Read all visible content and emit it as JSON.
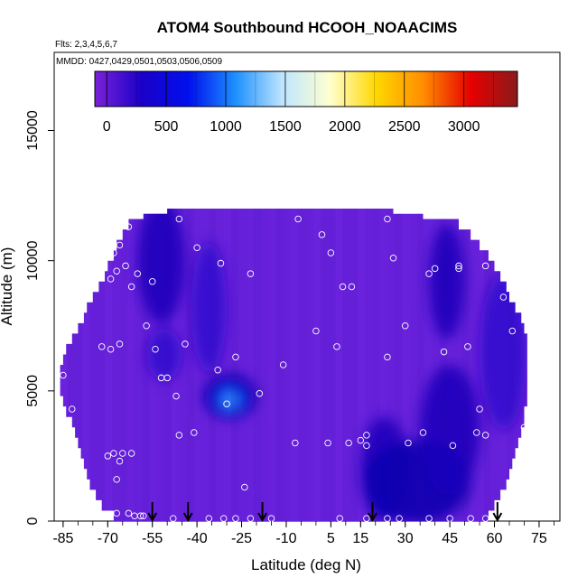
{
  "chart_data": {
    "type": "heatmap",
    "title": "ATOM4 Southbound HCOOH_NOAACIMS",
    "flights_note": "Flts: 2,3,4,5,6,7",
    "dates_note": "MMDD: 0427,0429,0501,0503,0506,0509",
    "xlabel": "Latitude (deg N)",
    "ylabel": "Altitude (m)",
    "xlim": [
      -88,
      82
    ],
    "ylim": [
      0,
      18000
    ],
    "x_ticks": [
      -85,
      -70,
      -55,
      -40,
      -25,
      -10,
      5,
      15,
      30,
      45,
      60,
      75
    ],
    "y_ticks": [
      0,
      5000,
      10000,
      15000
    ],
    "colorbar": {
      "range": [
        -100,
        3450
      ],
      "ticks": [
        0,
        500,
        1000,
        1500,
        2000,
        2500,
        3000
      ],
      "colors": [
        "#7b22d8",
        "#1a00c8",
        "#0010ee",
        "#1e90ff",
        "#bfe6ff",
        "#ffffd0",
        "#ffd700",
        "#ff8c00",
        "#e60000",
        "#8b1a1a"
      ]
    },
    "field_colors": {
      "background": "#6a22dc",
      "low": "#3512d0",
      "mid": "#1c06bc",
      "high": "#0a00b0",
      "plume_outer": "#0020e8",
      "plume_center": "#3aa0ff"
    },
    "enhanced_regions": [
      {
        "lat": -52,
        "alt": 10000,
        "rlat": 8,
        "ralt": 2400,
        "level": "mid"
      },
      {
        "lat": -51,
        "alt": 6400,
        "rlat": 6,
        "ralt": 1000,
        "level": "low"
      },
      {
        "lat": -36,
        "alt": 8200,
        "rlat": 6,
        "ralt": 2500,
        "level": "low"
      },
      {
        "lat": -29,
        "alt": 4800,
        "rlat": 9,
        "ralt": 850,
        "level": "high"
      },
      {
        "lat": 23,
        "alt": 2000,
        "rlat": 8,
        "ralt": 2000,
        "level": "mid"
      },
      {
        "lat": 34,
        "alt": 1500,
        "rlat": 18,
        "ralt": 1600,
        "level": "high"
      },
      {
        "lat": 45,
        "alt": 3500,
        "rlat": 10,
        "ralt": 2500,
        "level": "mid"
      },
      {
        "lat": 44,
        "alt": 9200,
        "rlat": 6,
        "ralt": 2200,
        "level": "mid"
      },
      {
        "lat": 63,
        "alt": 6500,
        "rlat": 8,
        "ralt": 3000,
        "level": "low"
      }
    ],
    "sample_points": [
      [
        -85,
        5600
      ],
      [
        -82,
        4300
      ],
      [
        -72,
        6700
      ],
      [
        -69,
        6600
      ],
      [
        -66,
        6800
      ],
      [
        -70,
        2500
      ],
      [
        -68,
        2600
      ],
      [
        -65,
        2600
      ],
      [
        -67,
        1600
      ],
      [
        -66,
        2300
      ],
      [
        -62,
        2600
      ],
      [
        -70,
        200
      ],
      [
        -67,
        300
      ],
      [
        -63,
        300
      ],
      [
        -61,
        200
      ],
      [
        -59,
        200
      ],
      [
        -58,
        200
      ],
      [
        -69,
        9300
      ],
      [
        -67,
        9600
      ],
      [
        -64,
        9800
      ],
      [
        -62,
        9000
      ],
      [
        -60,
        9500
      ],
      [
        -55,
        9200
      ],
      [
        -68,
        10300
      ],
      [
        -66,
        10600
      ],
      [
        -63,
        11300
      ],
      [
        -57,
        7500
      ],
      [
        -54,
        6600
      ],
      [
        -52,
        5500
      ],
      [
        -50,
        5500
      ],
      [
        -47,
        4800
      ],
      [
        -44,
        6800
      ],
      [
        -46,
        3300
      ],
      [
        -41,
        3400
      ],
      [
        -40,
        10500
      ],
      [
        -33,
        5800
      ],
      [
        -30,
        4500
      ],
      [
        -27,
        6300
      ],
      [
        -32,
        9900
      ],
      [
        -22,
        9500
      ],
      [
        -46,
        11600
      ],
      [
        -19,
        4900
      ],
      [
        -24,
        1300
      ],
      [
        -11,
        6000
      ],
      [
        -6,
        11600
      ],
      [
        2,
        11000
      ],
      [
        0,
        7300
      ],
      [
        5,
        10300
      ],
      [
        7,
        6700
      ],
      [
        9,
        9000
      ],
      [
        12,
        9000
      ],
      [
        15,
        3100
      ],
      [
        17,
        3300
      ],
      [
        17,
        2900
      ],
      [
        11,
        3000
      ],
      [
        4,
        3000
      ],
      [
        -7,
        3000
      ],
      [
        24,
        11600
      ],
      [
        26,
        10100
      ],
      [
        30,
        7500
      ],
      [
        31,
        3000
      ],
      [
        24,
        6300
      ],
      [
        36,
        3400
      ],
      [
        38,
        9500
      ],
      [
        40,
        9700
      ],
      [
        43,
        6500
      ],
      [
        46,
        2900
      ],
      [
        48,
        9700
      ],
      [
        48,
        9800
      ],
      [
        51,
        6700
      ],
      [
        54,
        3400
      ],
      [
        55,
        4300
      ],
      [
        57,
        3300
      ],
      [
        57,
        9800
      ],
      [
        63,
        8600
      ],
      [
        66,
        7300
      ],
      [
        70,
        3600
      ],
      [
        -48,
        100
      ],
      [
        -36,
        100
      ],
      [
        -31,
        100
      ],
      [
        -27,
        100
      ],
      [
        -22,
        100
      ],
      [
        -15,
        100
      ],
      [
        8,
        100
      ],
      [
        17,
        100
      ],
      [
        24,
        100
      ],
      [
        28,
        100
      ],
      [
        38,
        100
      ],
      [
        45,
        100
      ],
      [
        52,
        100
      ],
      [
        57,
        100
      ]
    ],
    "arrows_lat": [
      -55,
      -43,
      -18,
      19,
      61
    ]
  }
}
